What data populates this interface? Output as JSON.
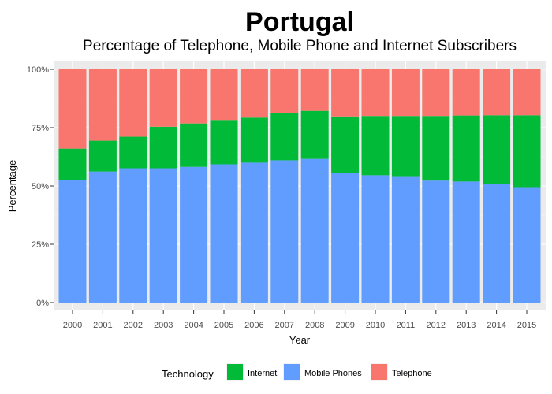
{
  "chart_data": {
    "type": "bar",
    "stacked": true,
    "title": "Portugal",
    "subtitle": "Percentage of Telephone, Mobile Phone and Internet Subscribers",
    "xlabel": "Year",
    "ylabel": "Percentage",
    "ylim": [
      0,
      100
    ],
    "ytick_labels": [
      "0%",
      "25%",
      "50%",
      "75%",
      "100%"
    ],
    "ytick_values": [
      0,
      25,
      50,
      75,
      100
    ],
    "grid": true,
    "legend_position": "bottom",
    "legend_title": "Technology",
    "categories": [
      "2000",
      "2001",
      "2002",
      "2003",
      "2004",
      "2005",
      "2006",
      "2007",
      "2008",
      "2009",
      "2010",
      "2011",
      "2012",
      "2013",
      "2014",
      "2015"
    ],
    "series": [
      {
        "name": "Mobile Phones",
        "color": "#619CFF",
        "values": [
          52.5,
          56.2,
          57.6,
          57.6,
          58.2,
          59.3,
          60.0,
          61.0,
          61.6,
          55.6,
          54.6,
          54.2,
          52.3,
          51.9,
          50.9,
          49.5
        ]
      },
      {
        "name": "Internet",
        "color": "#00BA38",
        "values": [
          13.5,
          13.2,
          13.5,
          17.8,
          18.6,
          19.0,
          19.3,
          20.2,
          20.6,
          24.2,
          25.4,
          25.8,
          27.7,
          28.3,
          29.4,
          30.8
        ]
      },
      {
        "name": "Telephone",
        "color": "#F8766D",
        "values": [
          34.0,
          30.6,
          28.9,
          24.6,
          23.2,
          21.7,
          20.7,
          18.8,
          17.8,
          20.2,
          20.0,
          20.0,
          20.0,
          19.8,
          19.7,
          19.7
        ]
      }
    ],
    "legend_order": [
      "Internet",
      "Mobile Phones",
      "Telephone"
    ]
  }
}
